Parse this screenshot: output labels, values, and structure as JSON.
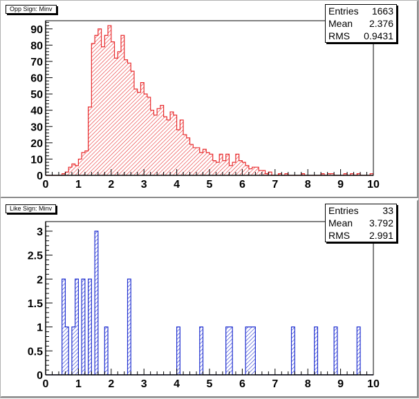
{
  "chart_data": [
    {
      "type": "histogram",
      "title": "Opp Sign: Minv",
      "color": "#e8292b",
      "fill": "hatched",
      "xlim": [
        0,
        10
      ],
      "ylim": [
        0,
        95
      ],
      "x_ticks": [
        "0",
        "1",
        "2",
        "3",
        "4",
        "5",
        "6",
        "7",
        "8",
        "9",
        "10"
      ],
      "y_ticks": [
        "0",
        "10",
        "20",
        "30",
        "40",
        "50",
        "60",
        "70",
        "80",
        "90"
      ],
      "stats": [
        {
          "label": "Entries",
          "value": "1663"
        },
        {
          "label": "Mean",
          "value": "2.376"
        },
        {
          "label": "RMS",
          "value": "0.9431"
        }
      ],
      "bin_width": 0.1,
      "values": [
        0,
        0,
        0,
        0,
        0,
        1,
        2,
        5,
        7,
        6,
        10,
        14,
        15,
        42,
        81,
        86,
        90,
        79,
        86,
        92,
        82,
        72,
        76,
        86,
        71,
        69,
        64,
        53,
        51,
        57,
        50,
        48,
        40,
        37,
        41,
        43,
        36,
        34,
        39,
        37,
        28,
        34,
        25,
        23,
        19,
        17,
        17,
        14,
        16,
        14,
        13,
        9,
        8,
        13,
        9,
        13,
        6,
        8,
        13,
        9,
        8,
        6,
        4,
        5,
        5,
        3,
        3,
        1,
        2,
        0,
        0,
        1,
        0,
        1,
        0,
        0,
        0,
        0,
        1,
        0,
        0,
        0,
        0,
        0,
        1,
        0,
        1,
        1,
        0,
        0,
        0,
        1,
        0,
        1,
        0,
        1,
        0,
        0,
        0,
        1,
        0,
        0,
        1,
        0,
        0,
        0,
        1,
        0,
        0,
        0,
        1,
        0,
        0,
        0,
        1,
        0,
        0,
        1,
        0,
        1,
        0,
        0,
        1,
        0,
        0,
        1,
        0,
        0,
        0,
        0,
        0,
        1,
        0,
        0,
        1,
        0,
        0,
        0,
        0,
        0
      ]
    },
    {
      "type": "histogram",
      "title": "Like Sign: Minv",
      "color": "#1f2fd0",
      "fill": "hatched",
      "xlim": [
        0,
        10
      ],
      "ylim": [
        0,
        3.2
      ],
      "x_ticks": [
        "0",
        "1",
        "2",
        "3",
        "4",
        "5",
        "6",
        "7",
        "8",
        "9",
        "10"
      ],
      "y_ticks": [
        "0",
        "0.5",
        "1",
        "1.5",
        "2",
        "2.5",
        "3"
      ],
      "stats": [
        {
          "label": "Entries",
          "value": "33"
        },
        {
          "label": "Mean",
          "value": "3.792"
        },
        {
          "label": "RMS",
          "value": "2.991"
        }
      ],
      "bin_width": 0.1,
      "values": [
        0,
        0,
        0,
        0,
        0,
        2,
        1,
        0,
        1,
        2,
        0,
        2,
        0,
        2,
        0,
        3,
        0,
        0,
        1,
        0,
        0,
        0,
        0,
        0,
        0,
        2,
        0,
        0,
        0,
        0,
        0,
        0,
        0,
        0,
        0,
        0,
        0,
        0,
        0,
        0,
        1,
        0,
        0,
        0,
        0,
        0,
        0,
        1,
        0,
        0,
        0,
        0,
        0,
        0,
        0,
        1,
        1,
        0,
        0,
        0,
        0,
        1,
        1,
        1,
        0,
        0,
        0,
        0,
        0,
        0,
        0,
        0,
        0,
        0,
        0,
        1,
        0,
        0,
        0,
        0,
        0,
        0,
        1,
        0,
        0,
        0,
        0,
        0,
        1,
        0,
        0,
        0,
        0,
        0,
        0,
        1,
        0,
        0,
        0,
        0
      ]
    }
  ]
}
